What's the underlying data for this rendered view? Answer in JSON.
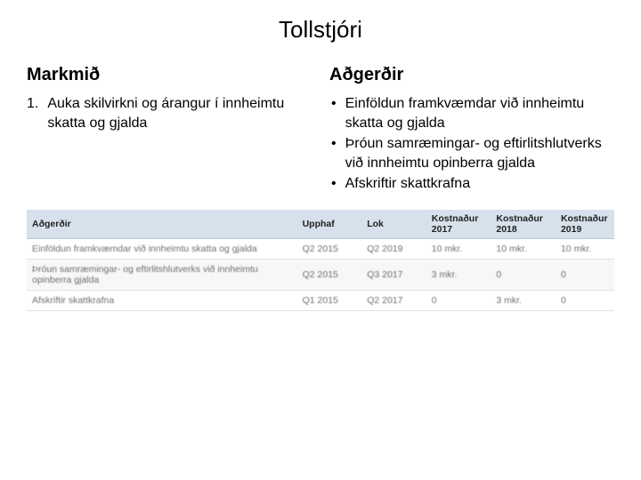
{
  "title": "Tollstjóri",
  "left": {
    "heading": "Markmið",
    "items": [
      {
        "num": "1.",
        "text": "Auka skilvirkni og árangur í innheimtu skatta og gjalda"
      }
    ]
  },
  "right": {
    "heading": "Aðgerðir",
    "items": [
      {
        "bullet": "•",
        "text": "Einföldun framkvæmdar við innheimtu skatta og gjalda"
      },
      {
        "bullet": "•",
        "text": "Þróun samræmingar- og eftirlitshlutverks við innheimtu opinberra gjalda"
      },
      {
        "bullet": "•",
        "text": "Afskriftir skattkrafna"
      }
    ]
  },
  "table": {
    "header_bg": "#d6e1ec",
    "columns": [
      {
        "label": "Aðgerðir",
        "class": "col-action"
      },
      {
        "label": "Upphaf",
        "class": "col-start"
      },
      {
        "label": "Lok",
        "class": "col-end"
      },
      {
        "label": "Kostnaður 2017",
        "class": "col-c17"
      },
      {
        "label": "Kostnaður 2018",
        "class": "col-c18"
      },
      {
        "label": "Kostnaður 2019",
        "class": "col-c19"
      }
    ],
    "rows": [
      [
        "Einföldun framkvæmdar við innheimtu skatta og gjalda",
        "Q2 2015",
        "Q2 2019",
        "10 mkr.",
        "10 mkr.",
        "10 mkr."
      ],
      [
        "Þróun samræmingar- og eftirlitshlutverks við innheimtu opinberra gjalda",
        "Q2 2015",
        "Q3 2017",
        "3 mkr.",
        "0",
        "0"
      ],
      [
        "Afskriftir skattkrafna",
        "Q1 2015",
        "Q2 2017",
        "0",
        "3 mkr.",
        "0"
      ]
    ]
  }
}
